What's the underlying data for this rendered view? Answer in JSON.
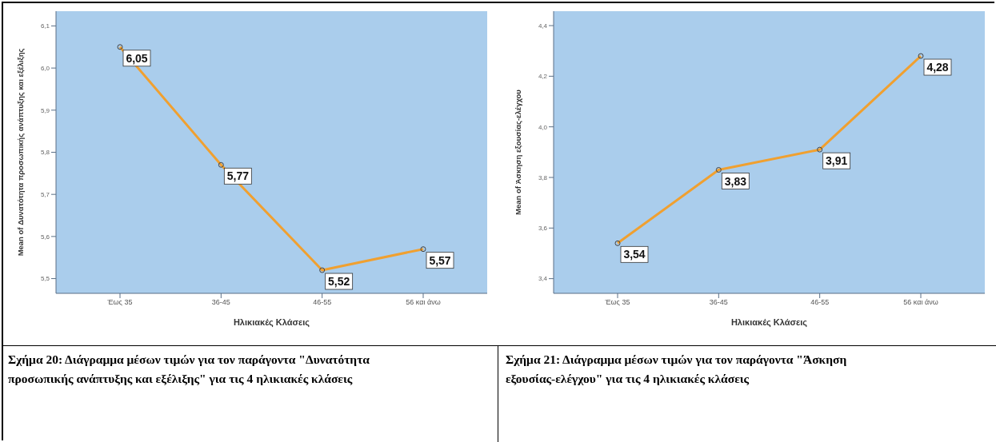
{
  "chart_data": [
    {
      "type": "line",
      "categories": [
        "Έως 35",
        "36-45",
        "46-55",
        "56 και άνω"
      ],
      "xlabel": "Ηλικιακές Κλάσεις",
      "ylabel": "Mean of Δυνατότητα προσωπικής ανάπτυξης και εξέλιξης",
      "series": [
        {
          "color": "#f0a030",
          "values": [
            6.05,
            5.77,
            5.52,
            5.57
          ],
          "value_labels": [
            "6,05",
            "5,77",
            "5,52",
            "5,57"
          ]
        }
      ],
      "ylim": [
        5.465,
        6.135
      ],
      "yticks": [
        {
          "value": 5.5,
          "label": "5,5"
        },
        {
          "value": 5.6,
          "label": "5,6"
        },
        {
          "value": 5.7,
          "label": "5,7"
        },
        {
          "value": 5.8,
          "label": "5,8"
        },
        {
          "value": 5.9,
          "label": "5,9"
        },
        {
          "value": 6.0,
          "label": "6,0"
        },
        {
          "value": 6.1,
          "label": "6,1"
        }
      ],
      "grid": false,
      "legend": false,
      "marker": "circle",
      "annotations": [
        "Σχήμα 20: Διάγραμμα μέσων τιμών για τον παράγοντα \"Δυνατότητα προσωπικής ανάπτυξης και εξέλιξης\" για τις 4 ηλικιακές κλάσεις"
      ]
    },
    {
      "type": "line",
      "categories": [
        "Έως 35",
        "36-45",
        "46-55",
        "56 και άνω"
      ],
      "xlabel": "Ηλικιακές Κλάσεις",
      "ylabel": "Mean of Άσκηση εξουσίας-ελέγχου",
      "series": [
        {
          "color": "#f0a030",
          "values": [
            3.54,
            3.83,
            3.91,
            4.28
          ],
          "value_labels": [
            "3,54",
            "3,83",
            "3,91",
            "4,28"
          ]
        }
      ],
      "ylim": [
        3.342,
        4.457
      ],
      "yticks": [
        {
          "value": 3.4,
          "label": "3,4"
        },
        {
          "value": 3.6,
          "label": "3,6"
        },
        {
          "value": 3.8,
          "label": "3,8"
        },
        {
          "value": 4.0,
          "label": "4,0"
        },
        {
          "value": 4.2,
          "label": "4,2"
        },
        {
          "value": 4.4,
          "label": "4,4"
        }
      ],
      "grid": false,
      "legend": false,
      "marker": "circle",
      "annotations": [
        "Σχήμα 21: Διάγραμμα μέσων τιμών για τον παράγοντα \"Άσκηση εξουσίας-ελέγχου\" για τις 4 ηλικιακές κλάσεις"
      ]
    }
  ]
}
